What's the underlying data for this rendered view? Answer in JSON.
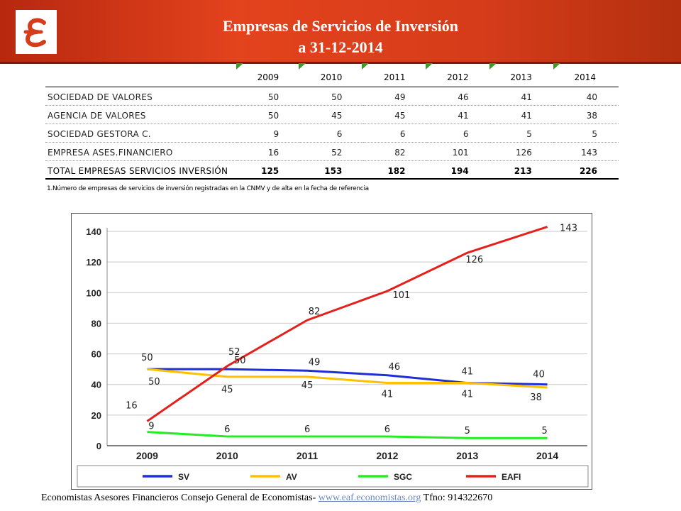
{
  "header": {
    "title_line1": "Empresas de Servicios de Inversión",
    "title_line2": "a 31-12-2014",
    "logo_icon": "euro-logo-icon",
    "brand_color": "#d63c1a"
  },
  "table": {
    "columns": [
      "2009",
      "2010",
      "2011",
      "2012",
      "2013",
      "2014"
    ],
    "rows": [
      {
        "label": "SOCIEDAD DE VALORES",
        "values": [
          "50",
          "50",
          "49",
          "46",
          "41",
          "40"
        ]
      },
      {
        "label": "AGENCIA DE VALORES",
        "values": [
          "50",
          "45",
          "45",
          "41",
          "41",
          "38"
        ]
      },
      {
        "label": "SOCIEDAD GESTORA C.",
        "values": [
          "9",
          "6",
          "6",
          "6",
          "5",
          "5"
        ]
      },
      {
        "label": "EMPRESA ASES.FINANCIERO",
        "values": [
          "16",
          "52",
          "82",
          "101",
          "126",
          "143"
        ]
      },
      {
        "label": "TOTAL EMPRESAS SERVICIOS INVERSIÓN",
        "values": [
          "125",
          "153",
          "182",
          "194",
          "213",
          "226"
        ]
      }
    ],
    "footnote": "1.Número de empresas de servicios de inversión registradas en la CNMV y de alta en la fecha de referencia"
  },
  "chart_data": {
    "type": "line",
    "x": [
      "2009",
      "2010",
      "2011",
      "2012",
      "2013",
      "2014"
    ],
    "ylim": [
      0,
      140
    ],
    "yticks": [
      0,
      20,
      40,
      60,
      80,
      100,
      120,
      140
    ],
    "grid": true,
    "legend_position": "bottom",
    "series": [
      {
        "name": "SV",
        "color": "#1f2fd8",
        "values": [
          50,
          50,
          49,
          46,
          41,
          40
        ]
      },
      {
        "name": "AV",
        "color": "#ffc000",
        "values": [
          50,
          45,
          45,
          41,
          41,
          38
        ]
      },
      {
        "name": "SGC",
        "color": "#22ee22",
        "values": [
          9,
          6,
          6,
          6,
          5,
          5
        ]
      },
      {
        "name": "EAFI",
        "color": "#e5201c",
        "values": [
          16,
          52,
          82,
          101,
          126,
          143
        ]
      }
    ]
  },
  "footer": {
    "text": "Economistas Asesores Financieros Consejo General de Economistas- ",
    "link": "www.eaf.economistas.org",
    "phone": " Tfno: 914322670"
  }
}
